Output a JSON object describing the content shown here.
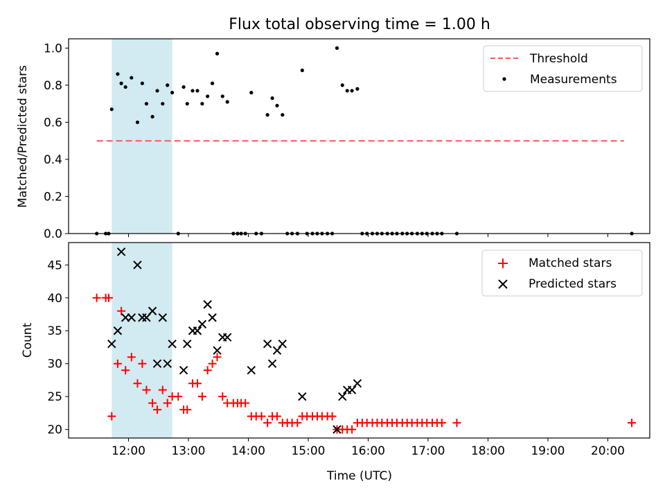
{
  "figure": {
    "title": "Flux total observing time = 1.00 h"
  },
  "colors": {
    "highlight": "#add8e6",
    "threshold": "#ff5555",
    "measurement": "#000000",
    "matched": "#ff0000",
    "predicted": "#000000"
  },
  "chart_data": [
    {
      "type": "scatter",
      "ylabel": "Matched/Predicted stars",
      "xlim_hours": [
        11.0,
        20.7
      ],
      "ylim": [
        0,
        1.05
      ],
      "yticks": [
        "0.0",
        "0.2",
        "0.4",
        "0.6",
        "0.8",
        "1.0"
      ],
      "ytick_values": [
        0,
        0.2,
        0.4,
        0.6,
        0.8,
        1.0
      ],
      "highlight_hours": [
        11.72,
        12.73
      ],
      "legend": {
        "location": "top-right",
        "threshold_label": "Threshold",
        "measurements_label": "Measurements"
      },
      "threshold": {
        "value": 0.5,
        "x_hours": [
          11.47,
          20.27
        ]
      },
      "measurements": {
        "x_hours": [
          11.47,
          11.62,
          11.67,
          11.72,
          11.82,
          11.88,
          11.95,
          12.05,
          12.15,
          12.23,
          12.3,
          12.4,
          12.48,
          12.57,
          12.65,
          12.73,
          12.83,
          12.92,
          12.98,
          13.07,
          13.15,
          13.23,
          13.32,
          13.4,
          13.48,
          13.57,
          13.65,
          13.75,
          13.82,
          13.88,
          13.95,
          14.05,
          14.13,
          14.22,
          14.32,
          14.4,
          14.48,
          14.57,
          14.65,
          14.73,
          14.82,
          14.9,
          14.98,
          15.07,
          15.15,
          15.23,
          15.32,
          15.4,
          15.48,
          15.57,
          15.65,
          15.73,
          15.82,
          15.9,
          15.98,
          16.07,
          16.15,
          16.23,
          16.32,
          16.4,
          16.48,
          16.57,
          16.65,
          16.73,
          16.82,
          16.9,
          16.98,
          17.07,
          17.15,
          17.23,
          17.48,
          20.4
        ],
        "y": [
          0,
          0,
          0,
          0.67,
          0.86,
          0.81,
          0.79,
          0.84,
          0.6,
          0.81,
          0.7,
          0.63,
          0.77,
          0.7,
          0.8,
          0.76,
          0,
          0.79,
          0.7,
          0.77,
          0.77,
          0.7,
          0.74,
          0.81,
          0.97,
          0.74,
          0.71,
          0,
          0,
          0,
          0,
          0.76,
          0,
          0,
          0.64,
          0.73,
          0.69,
          0.64,
          0,
          0,
          0,
          0.88,
          0,
          0,
          0,
          0,
          0,
          0,
          1.0,
          0.8,
          0.77,
          0.77,
          0.78,
          0,
          0,
          0,
          0,
          0,
          0,
          0,
          0,
          0,
          0,
          0,
          0,
          0,
          0,
          0,
          0,
          0,
          0,
          0
        ]
      }
    },
    {
      "type": "scatter",
      "xlabel": "Time (UTC)",
      "ylabel": "Count",
      "xlim_hours": [
        11.0,
        20.7
      ],
      "ylim": [
        18.7,
        48.4
      ],
      "yticks": [
        "20",
        "25",
        "30",
        "35",
        "40",
        "45"
      ],
      "ytick_values": [
        20,
        25,
        30,
        35,
        40,
        45
      ],
      "xticks": [
        "12:00",
        "13:00",
        "14:00",
        "15:00",
        "16:00",
        "17:00",
        "18:00",
        "19:00",
        "20:00"
      ],
      "xtick_hours": [
        12,
        13,
        14,
        15,
        16,
        17,
        18,
        19,
        20
      ],
      "highlight_hours": [
        11.72,
        12.73
      ],
      "legend": {
        "location": "top-right",
        "matched_label": "Matched stars",
        "predicted_label": "Predicted stars"
      },
      "matched": {
        "x_hours": [
          11.47,
          11.62,
          11.67,
          11.72,
          11.82,
          11.88,
          11.95,
          12.05,
          12.15,
          12.23,
          12.3,
          12.4,
          12.48,
          12.57,
          12.65,
          12.73,
          12.83,
          12.92,
          12.98,
          13.07,
          13.15,
          13.23,
          13.32,
          13.4,
          13.48,
          13.57,
          13.65,
          13.75,
          13.82,
          13.88,
          13.95,
          14.05,
          14.13,
          14.22,
          14.32,
          14.4,
          14.48,
          14.57,
          14.65,
          14.73,
          14.82,
          14.9,
          14.98,
          15.07,
          15.15,
          15.23,
          15.32,
          15.4,
          15.48,
          15.57,
          15.65,
          15.73,
          15.82,
          15.9,
          15.98,
          16.07,
          16.15,
          16.23,
          16.32,
          16.4,
          16.48,
          16.57,
          16.65,
          16.73,
          16.82,
          16.9,
          16.98,
          17.07,
          17.15,
          17.23,
          17.48,
          20.4
        ],
        "y": [
          40,
          40,
          40,
          22,
          30,
          38,
          29,
          31,
          27,
          30,
          26,
          24,
          23,
          26,
          24,
          25,
          25,
          23,
          23,
          27,
          27,
          25,
          29,
          30,
          31,
          25,
          24,
          24,
          24,
          24,
          24,
          22,
          22,
          22,
          21,
          22,
          22,
          21,
          21,
          21,
          21,
          22,
          22,
          22,
          22,
          22,
          22,
          22,
          20,
          20,
          20,
          20,
          21,
          21,
          21,
          21,
          21,
          21,
          21,
          21,
          21,
          21,
          21,
          21,
          21,
          21,
          21,
          21,
          21,
          21,
          21,
          21
        ]
      },
      "predicted": {
        "x_hours": [
          11.72,
          11.82,
          11.88,
          11.95,
          12.05,
          12.15,
          12.23,
          12.3,
          12.4,
          12.48,
          12.57,
          12.65,
          12.73,
          12.92,
          12.98,
          13.07,
          13.15,
          13.23,
          13.32,
          13.4,
          13.48,
          13.57,
          13.65,
          14.05,
          14.32,
          14.4,
          14.48,
          14.57,
          14.9,
          15.48,
          15.57,
          15.65,
          15.73,
          15.82
        ],
        "y": [
          33,
          35,
          47,
          37,
          37,
          45,
          37,
          37,
          38,
          30,
          37,
          30,
          33,
          29,
          33,
          35,
          35,
          36,
          39,
          37,
          32,
          34,
          34,
          29,
          33,
          30,
          32,
          33,
          25,
          20,
          25,
          26,
          26,
          27
        ]
      }
    }
  ]
}
